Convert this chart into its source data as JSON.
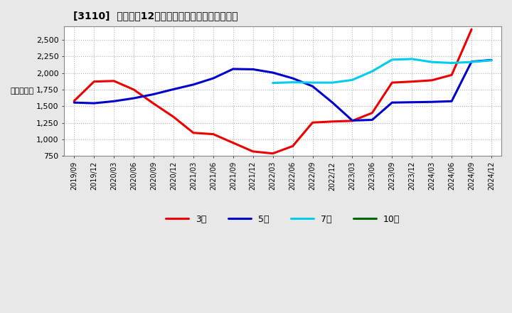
{
  "title": "[3110]  経常利益12か月移動合計の標準偏差の推移",
  "ylabel": "（百万円）",
  "ylim": [
    750,
    2700
  ],
  "yticks": [
    750,
    1000,
    1250,
    1500,
    1750,
    2000,
    2250,
    2500
  ],
  "background_color": "#e8e8e8",
  "plot_bg_color": "#ffffff",
  "grid_color": "#aaaaaa",
  "series": {
    "3年": {
      "color": "#ee0000",
      "dates": [
        "2019/09",
        "2019/12",
        "2020/03",
        "2020/06",
        "2020/09",
        "2020/12",
        "2021/03",
        "2021/06",
        "2021/09",
        "2021/12",
        "2022/03",
        "2022/06",
        "2022/09",
        "2022/12",
        "2023/03",
        "2023/06",
        "2023/09",
        "2023/12",
        "2024/03",
        "2024/06",
        "2024/09"
      ],
      "values": [
        1580,
        1870,
        1880,
        1750,
        1540,
        1340,
        1100,
        1080,
        950,
        820,
        790,
        900,
        1255,
        1270,
        1280,
        1400,
        1855,
        1870,
        1890,
        1970,
        2655
      ]
    },
    "5年": {
      "color": "#0000cc",
      "dates": [
        "2019/09",
        "2019/12",
        "2020/03",
        "2020/06",
        "2020/09",
        "2020/12",
        "2021/03",
        "2021/06",
        "2021/09",
        "2021/12",
        "2022/03",
        "2022/06",
        "2022/09",
        "2022/12",
        "2023/03",
        "2023/06",
        "2023/09",
        "2023/12",
        "2024/03",
        "2024/06",
        "2024/09",
        "2024/12"
      ],
      "values": [
        1555,
        1545,
        1575,
        1620,
        1680,
        1755,
        1825,
        1920,
        2060,
        2055,
        2005,
        1920,
        1800,
        1555,
        1285,
        1295,
        1555,
        1560,
        1565,
        1575,
        2170,
        2195
      ]
    },
    "7年": {
      "color": "#00ccee",
      "dates": [
        "2022/03",
        "2022/06",
        "2022/09",
        "2022/12",
        "2023/03",
        "2023/06",
        "2023/09",
        "2023/12",
        "2024/03",
        "2024/06",
        "2024/09",
        "2024/12"
      ],
      "values": [
        1850,
        1860,
        1855,
        1855,
        1895,
        2025,
        2200,
        2210,
        2165,
        2150,
        2165,
        2190
      ]
    },
    "10年": {
      "color": "#006600",
      "dates": [],
      "values": []
    }
  },
  "xtick_labels": [
    "2019/09",
    "2019/12",
    "2020/03",
    "2020/06",
    "2020/09",
    "2020/12",
    "2021/03",
    "2021/06",
    "2021/09",
    "2021/12",
    "2022/03",
    "2022/06",
    "2022/09",
    "2022/12",
    "2023/03",
    "2023/06",
    "2023/09",
    "2023/12",
    "2024/03",
    "2024/06",
    "2024/09",
    "2024/12"
  ],
  "legend_order": [
    "3年",
    "5年",
    "7年",
    "10年"
  ],
  "line_width": 2.2
}
